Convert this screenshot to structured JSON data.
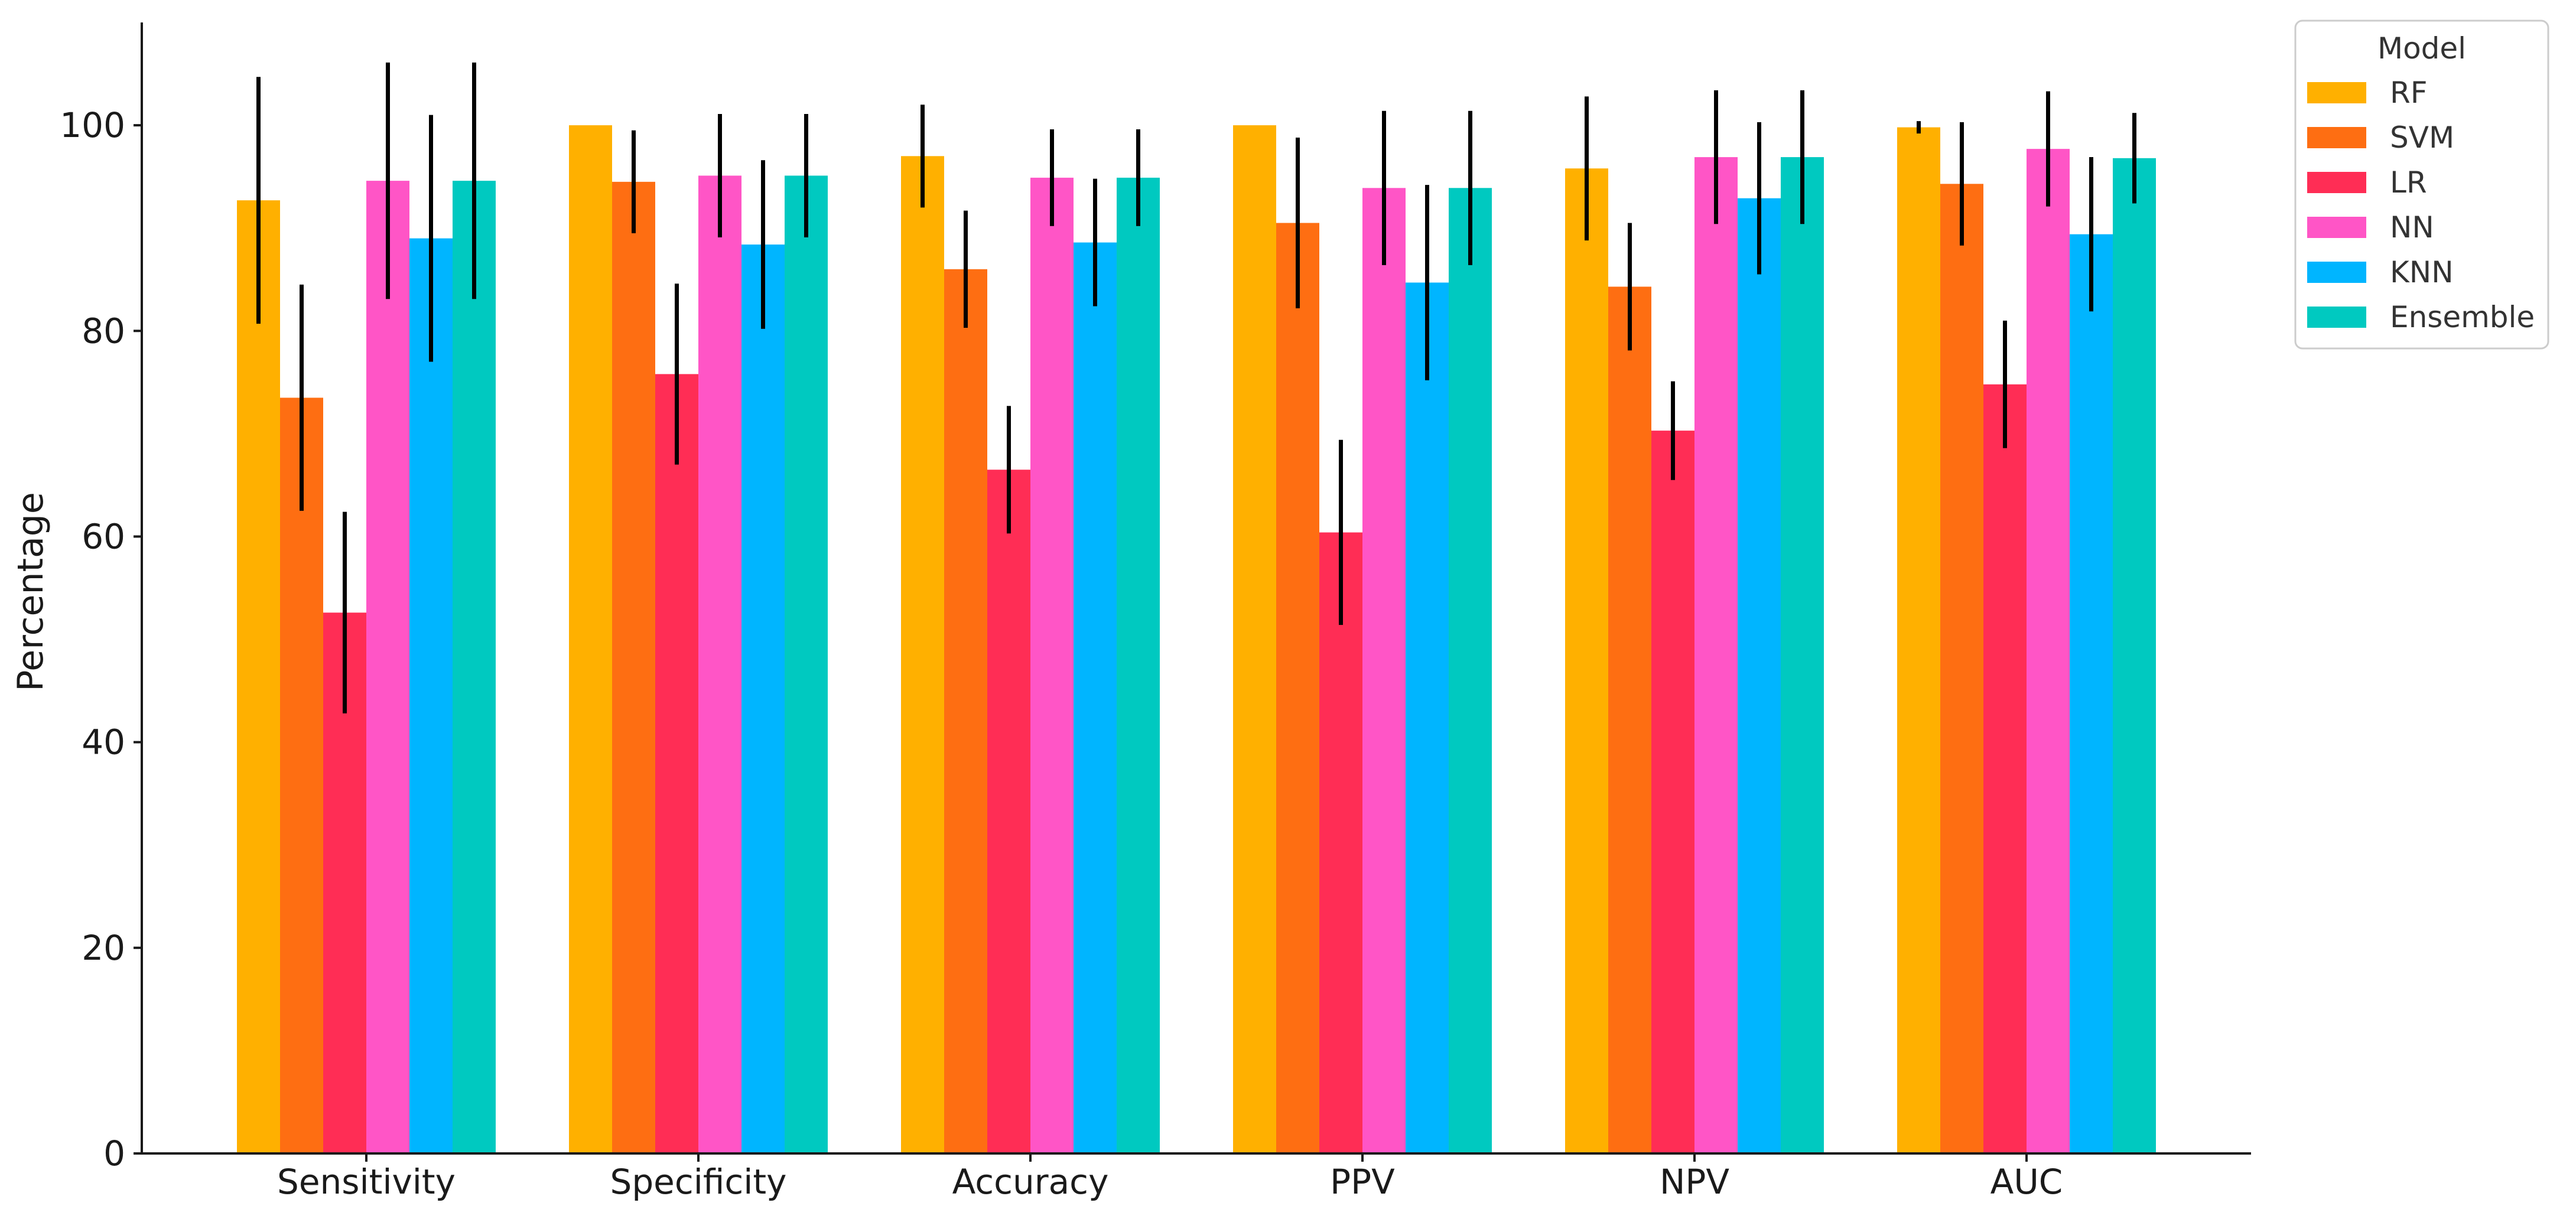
{
  "chart_data": {
    "type": "bar",
    "title": "",
    "xlabel": "",
    "ylabel": "Percentage",
    "ylim": [
      0,
      110
    ],
    "yticks": [
      0,
      20,
      40,
      60,
      80,
      100
    ],
    "grid": false,
    "legend": {
      "title": "Model",
      "placement": "top-right"
    },
    "categories": [
      "Sensitivity",
      "Specificity",
      "Accuracy",
      "PPV",
      "NPV",
      "AUC"
    ],
    "series": [
      {
        "name": "RF",
        "color": "#FFB000",
        "values": [
          92.7,
          100.0,
          97.0,
          100.0,
          95.8,
          99.8
        ],
        "errors": [
          12.0,
          0,
          5.0,
          0,
          7.0,
          0.6
        ]
      },
      {
        "name": "SVM",
        "color": "#FE6E12",
        "values": [
          73.5,
          94.5,
          86.0,
          90.5,
          84.3,
          94.3
        ],
        "errors": [
          11.0,
          5.0,
          5.7,
          8.3,
          6.2,
          6.0
        ]
      },
      {
        "name": "LR",
        "color": "#FF2D55",
        "values": [
          52.6,
          75.8,
          66.5,
          60.4,
          70.3,
          74.8
        ],
        "errors": [
          9.8,
          8.8,
          6.2,
          9.0,
          4.8,
          6.2
        ]
      },
      {
        "name": "NN",
        "color": "#FF55C6",
        "values": [
          94.6,
          95.1,
          94.9,
          93.9,
          96.9,
          97.7
        ],
        "errors": [
          11.5,
          6.0,
          4.7,
          7.5,
          6.5,
          5.6
        ]
      },
      {
        "name": "KNN",
        "color": "#00B5FF",
        "values": [
          89.0,
          88.4,
          88.6,
          84.7,
          92.9,
          89.4
        ],
        "errors": [
          12.0,
          8.2,
          6.2,
          9.5,
          7.4,
          7.5
        ]
      },
      {
        "name": "Ensemble",
        "color": "#00C9C0",
        "values": [
          94.6,
          95.1,
          94.9,
          93.9,
          96.9,
          96.8
        ],
        "errors": [
          11.5,
          6.0,
          4.7,
          7.5,
          6.5,
          4.4
        ]
      }
    ]
  }
}
